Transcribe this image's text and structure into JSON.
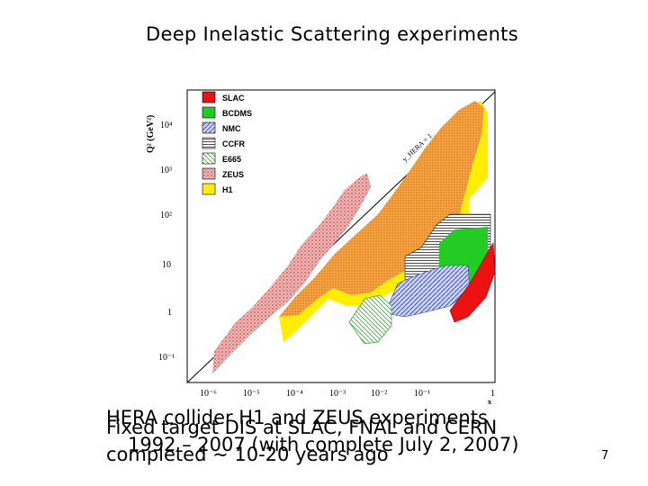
{
  "slide": {
    "title": "Deep Inelastic Scattering experiments",
    "page_number": "7",
    "captions": {
      "hera_line1": "HERA collider H1 and ZEUS experiments",
      "hera_line2": "1992 – 2007 (with complete July 2, 2007)",
      "fixed_line1": "Fixed target DIS at SLAC, FNAL and CERN",
      "fixed_line2": "completed ~ 10-20 years ago"
    }
  },
  "figure": {
    "ylabel": "Q² (GeV²)",
    "xlabel": "x",
    "y_ticks": [
      "10⁴",
      "10³",
      "10²",
      "10",
      "1",
      "10⁻¹"
    ],
    "x_ticks": [
      "10⁻⁶",
      "10⁻⁵",
      "10⁻⁴",
      "10⁻³",
      "10⁻²",
      "10⁻¹",
      "1"
    ],
    "kinematic_limit_label": "y_HERA = 1",
    "legend": [
      {
        "name": "SLAC",
        "color": "#ee1111"
      },
      {
        "name": "BCDMS",
        "color": "#22cc22"
      },
      {
        "name": "NMC",
        "color": "#5b6fcf"
      },
      {
        "name": "CCFR",
        "color": "#555555"
      },
      {
        "name": "E665",
        "color": "#66bb66"
      },
      {
        "name": "ZEUS",
        "color": "#d46a6a"
      },
      {
        "name": "H1",
        "color": "#ffee00"
      }
    ]
  }
}
